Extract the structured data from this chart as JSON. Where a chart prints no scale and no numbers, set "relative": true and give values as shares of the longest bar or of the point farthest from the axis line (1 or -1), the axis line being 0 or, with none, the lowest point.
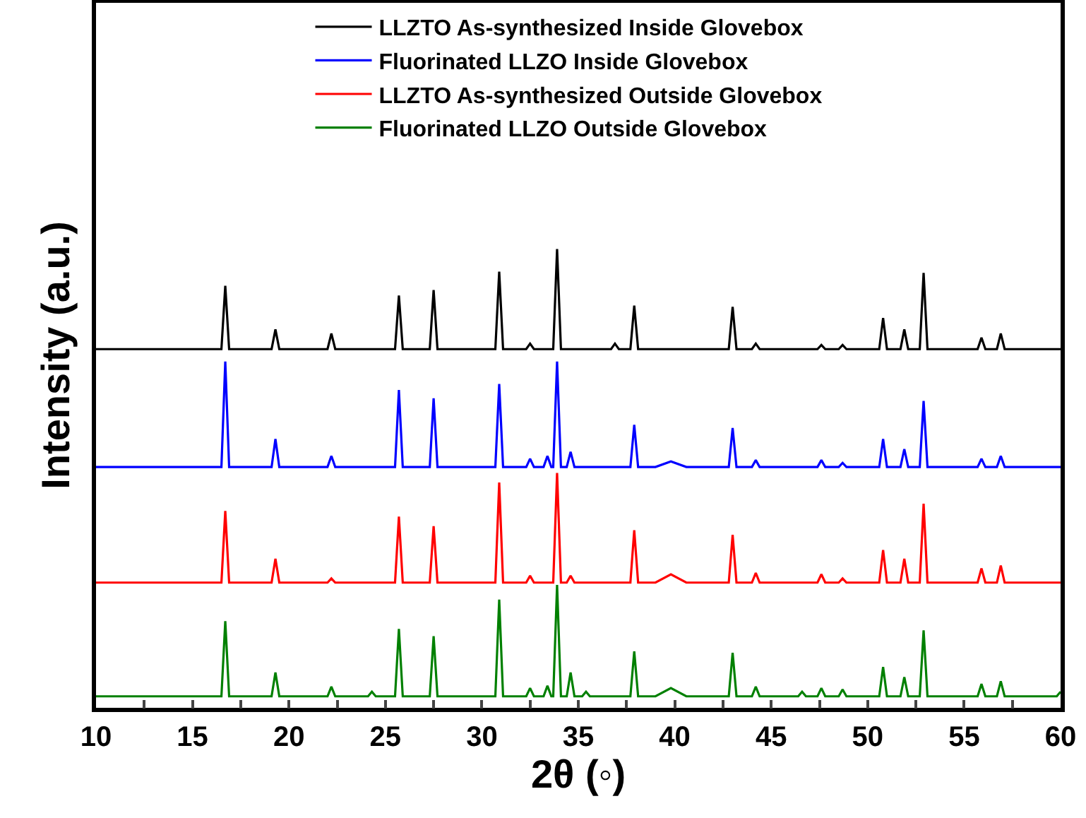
{
  "chart_data": {
    "type": "line",
    "xlabel": "2θ (◦)",
    "ylabel": "Intensity (a.u.)",
    "relative": true,
    "legend": "top",
    "grid": false,
    "marker": "none",
    "line_style": "solid",
    "xlim": [
      10,
      60
    ],
    "xticks": [
      10,
      {
        "value": 12.5,
        "label": null
      },
      15,
      {
        "value": 17.5,
        "label": null
      },
      20,
      {
        "value": 22.5,
        "label": null
      },
      25,
      {
        "value": 27.5,
        "label": null
      },
      30,
      {
        "value": 32.5,
        "label": null
      },
      35,
      {
        "value": 37.5,
        "label": null
      },
      40,
      {
        "value": 42.5,
        "label": null
      },
      45,
      {
        "value": 47.5,
        "label": null
      },
      50,
      {
        "value": 52.5,
        "label": null
      },
      55,
      {
        "value": 57.5,
        "label": null
      },
      60
    ],
    "series": [
      {
        "name": "LLZTO As-synthesized Inside Glovebox",
        "color": "#000000",
        "x": [
          10,
          16.5,
          16.7,
          16.9,
          19.1,
          19.3,
          19.5,
          22.0,
          22.2,
          22.4,
          25.5,
          25.7,
          25.9,
          27.3,
          27.5,
          27.7,
          30.7,
          30.9,
          31.1,
          32.3,
          32.5,
          32.7,
          33.7,
          33.9,
          34.1,
          36.7,
          36.9,
          37.1,
          37.7,
          37.9,
          38.1,
          42.8,
          43.0,
          43.2,
          44.0,
          44.2,
          44.4,
          47.4,
          47.6,
          47.8,
          48.5,
          48.7,
          48.9,
          50.6,
          50.8,
          51.0,
          51.7,
          51.9,
          52.1,
          52.7,
          52.9,
          53.1,
          55.7,
          55.9,
          56.1,
          56.7,
          56.9,
          57.1,
          60
        ],
        "values": [
          0.782,
          0.782,
          0.92,
          0.782,
          0.782,
          0.825,
          0.782,
          0.782,
          0.816,
          0.782,
          0.782,
          0.899,
          0.782,
          0.782,
          0.911,
          0.782,
          0.782,
          0.951,
          0.782,
          0.782,
          0.794,
          0.782,
          0.782,
          1,
          0.782,
          0.782,
          0.794,
          0.782,
          0.782,
          0.877,
          0.782,
          0.782,
          0.874,
          0.782,
          0.782,
          0.794,
          0.782,
          0.782,
          0.791,
          0.782,
          0.782,
          0.791,
          0.782,
          0.782,
          0.85,
          0.782,
          0.782,
          0.825,
          0.782,
          0.782,
          0.948,
          0.782,
          0.782,
          0.807,
          0.782,
          0.782,
          0.816,
          0.782,
          0.782
        ]
      },
      {
        "name": "Fluorinated LLZO Inside Glovebox",
        "color": "#0000ff",
        "x": [
          10,
          16.5,
          16.7,
          16.9,
          19.1,
          19.3,
          19.5,
          22.0,
          22.2,
          22.4,
          25.5,
          25.7,
          25.9,
          27.3,
          27.5,
          27.7,
          30.7,
          30.9,
          31.1,
          32.3,
          32.5,
          32.7,
          33.2,
          33.4,
          33.6,
          33.7,
          33.9,
          34.1,
          34.4,
          34.6,
          34.8,
          37.7,
          37.9,
          38.1,
          39.0,
          39.8,
          40.6,
          42.8,
          43.0,
          43.2,
          44.0,
          44.2,
          44.4,
          47.4,
          47.6,
          47.8,
          48.5,
          48.7,
          48.9,
          50.6,
          50.8,
          51.0,
          51.7,
          51.9,
          52.1,
          52.7,
          52.9,
          53.1,
          55.7,
          55.9,
          56.1,
          56.7,
          56.9,
          57.1,
          60
        ],
        "values": [
          0.525,
          0.525,
          0.755,
          0.525,
          0.525,
          0.586,
          0.525,
          0.525,
          0.549,
          0.525,
          0.525,
          0.693,
          0.525,
          0.525,
          0.675,
          0.525,
          0.525,
          0.706,
          0.525,
          0.525,
          0.543,
          0.525,
          0.525,
          0.549,
          0.525,
          0.525,
          0.755,
          0.525,
          0.525,
          0.558,
          0.525,
          0.525,
          0.617,
          0.525,
          0.525,
          0.537,
          0.525,
          0.525,
          0.61,
          0.525,
          0.525,
          0.54,
          0.525,
          0.525,
          0.54,
          0.525,
          0.525,
          0.534,
          0.525,
          0.525,
          0.586,
          0.525,
          0.525,
          0.564,
          0.525,
          0.525,
          0.669,
          0.525,
          0.525,
          0.543,
          0.525,
          0.525,
          0.549,
          0.525,
          0.525
        ]
      },
      {
        "name": "LLZTO As-synthesized Outside Glovebox",
        "color": "#ff0000",
        "x": [
          10,
          16.5,
          16.7,
          16.9,
          19.1,
          19.3,
          19.5,
          22.0,
          22.2,
          22.4,
          25.5,
          25.7,
          25.9,
          27.3,
          27.5,
          27.7,
          30.7,
          30.9,
          31.1,
          32.3,
          32.5,
          32.7,
          33.7,
          33.9,
          34.1,
          34.4,
          34.6,
          34.8,
          37.7,
          37.9,
          38.1,
          39.0,
          39.8,
          40.6,
          42.8,
          43.0,
          43.2,
          44.0,
          44.2,
          44.4,
          47.4,
          47.6,
          47.8,
          48.5,
          48.7,
          48.9,
          50.6,
          50.8,
          51.0,
          51.7,
          51.9,
          52.1,
          52.7,
          52.9,
          53.1,
          55.7,
          55.9,
          56.1,
          56.7,
          56.9,
          57.1,
          60
        ],
        "values": [
          0.273,
          0.273,
          0.429,
          0.273,
          0.273,
          0.325,
          0.273,
          0.273,
          0.282,
          0.273,
          0.273,
          0.417,
          0.273,
          0.273,
          0.396,
          0.273,
          0.273,
          0.491,
          0.273,
          0.273,
          0.288,
          0.273,
          0.273,
          0.512,
          0.273,
          0.273,
          0.288,
          0.273,
          0.273,
          0.387,
          0.273,
          0.273,
          0.291,
          0.273,
          0.273,
          0.377,
          0.273,
          0.273,
          0.294,
          0.273,
          0.273,
          0.291,
          0.273,
          0.273,
          0.282,
          0.273,
          0.273,
          0.344,
          0.273,
          0.273,
          0.325,
          0.273,
          0.273,
          0.445,
          0.273,
          0.273,
          0.304,
          0.273,
          0.273,
          0.31,
          0.273,
          0.273
        ]
      },
      {
        "name": "Fluorinated LLZO Outside Glovebox",
        "color": "#008000",
        "x": [
          10,
          16.5,
          16.7,
          16.9,
          19.1,
          19.3,
          19.5,
          22.0,
          22.2,
          22.4,
          24.1,
          24.3,
          24.5,
          25.5,
          25.7,
          25.9,
          27.3,
          27.5,
          27.7,
          30.7,
          30.9,
          31.1,
          32.3,
          32.5,
          32.7,
          33.2,
          33.4,
          33.6,
          33.7,
          33.9,
          34.1,
          34.4,
          34.6,
          34.8,
          35.2,
          35.4,
          35.6,
          37.7,
          37.9,
          38.1,
          39.0,
          39.8,
          40.6,
          42.8,
          43.0,
          43.2,
          44.0,
          44.2,
          44.4,
          46.4,
          46.6,
          46.8,
          47.4,
          47.6,
          47.8,
          48.5,
          48.7,
          48.9,
          50.6,
          50.8,
          51.0,
          51.7,
          51.9,
          52.1,
          52.7,
          52.9,
          53.1,
          55.7,
          55.9,
          56.1,
          56.7,
          56.9,
          57.1,
          59.8,
          60
        ],
        "values": [
          0.025,
          0.025,
          0.189,
          0.025,
          0.025,
          0.077,
          0.025,
          0.025,
          0.046,
          0.025,
          0.025,
          0.035,
          0.025,
          0.025,
          0.172,
          0.025,
          0.025,
          0.156,
          0.025,
          0.025,
          0.236,
          0.025,
          0.025,
          0.043,
          0.025,
          0.025,
          0.048,
          0.025,
          0.025,
          0.268,
          0.025,
          0.025,
          0.077,
          0.025,
          0.025,
          0.035,
          0.025,
          0.025,
          0.123,
          0.025,
          0.025,
          0.043,
          0.025,
          0.025,
          0.12,
          0.025,
          0.025,
          0.046,
          0.025,
          0.025,
          0.035,
          0.025,
          0.025,
          0.043,
          0.025,
          0.025,
          0.04,
          0.025,
          0.025,
          0.089,
          0.025,
          0.025,
          0.067,
          0.025,
          0.025,
          0.169,
          0.025,
          0.025,
          0.052,
          0.025,
          0.025,
          0.058,
          0.025,
          0.025,
          0.035
        ]
      }
    ]
  }
}
